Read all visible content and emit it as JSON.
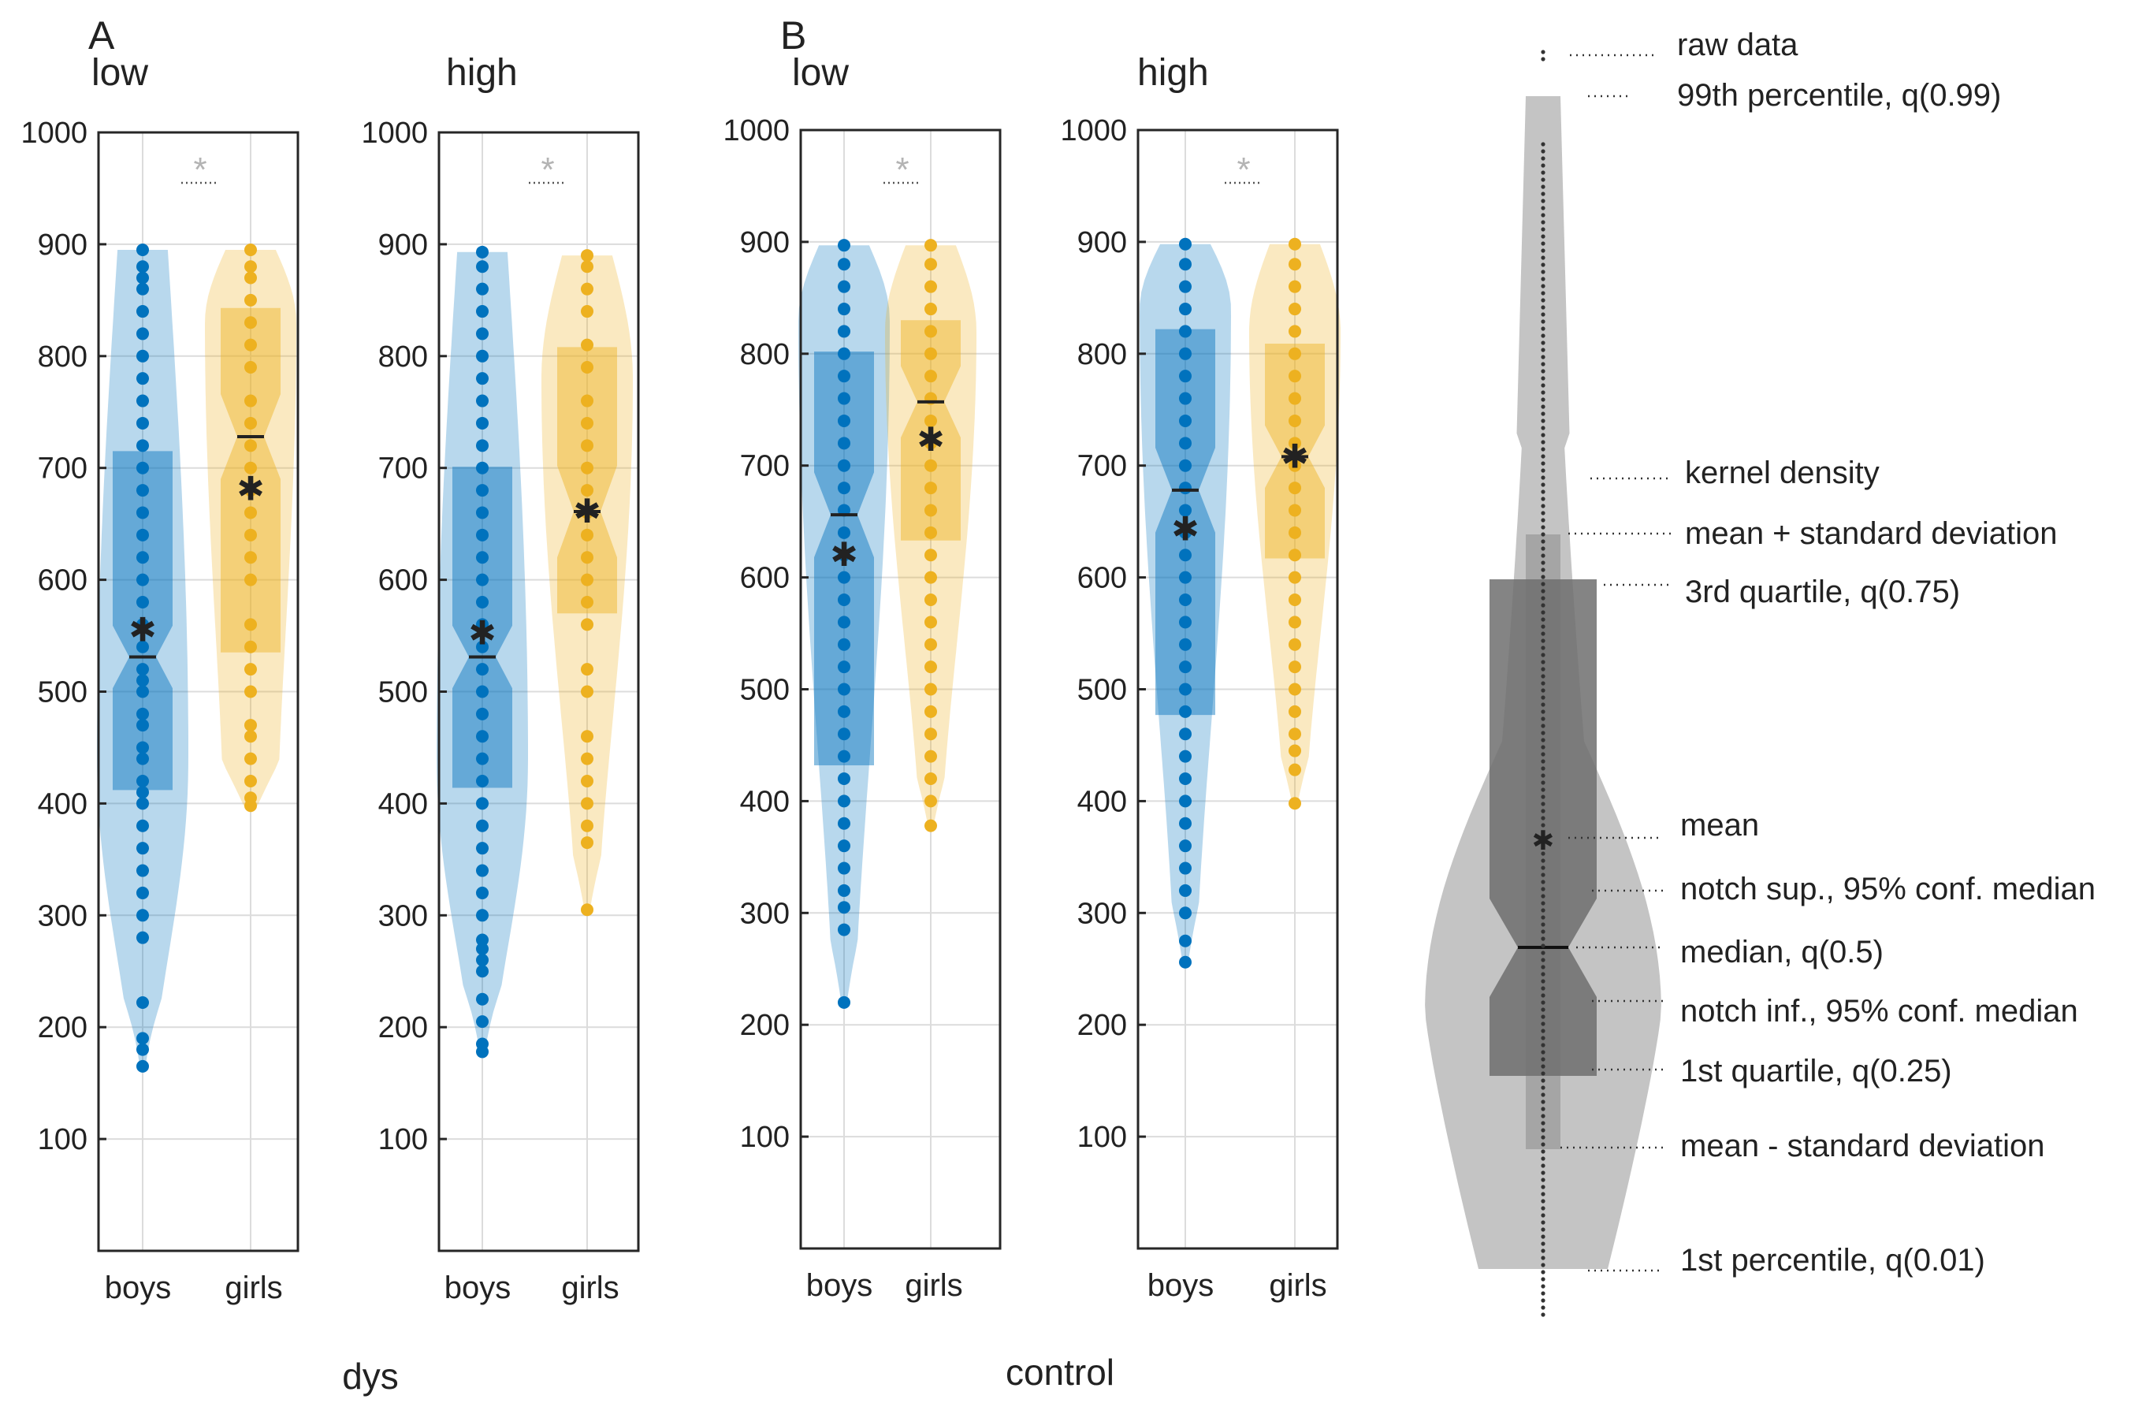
{
  "colors": {
    "boys": "#0072BD",
    "girls": "#EDB120",
    "legend_light": "#c4c4c4",
    "legend_mid": "#a5a5a5",
    "legend_dark": "#6e6e6e",
    "grid": "#dcdcdc",
    "significance": "#b4b4b4"
  },
  "chart_data": {
    "type": "violin",
    "ylim": [
      0,
      1000
    ],
    "yticks": [
      100,
      200,
      300,
      400,
      500,
      600,
      700,
      800,
      900,
      1000
    ],
    "categories": [
      "boys",
      "girls"
    ],
    "groups": [
      {
        "letter": "A",
        "label": "dys"
      },
      {
        "letter": "B",
        "label": "control"
      }
    ],
    "panels": [
      {
        "title": "low",
        "group": "dys",
        "significance": "*",
        "series": [
          {
            "name": "boys",
            "min": 165,
            "max": 895,
            "q1": 412,
            "median": 531,
            "q3": 715,
            "mean": 555,
            "notch_low": 503,
            "notch_high": 559,
            "density_peak": 440,
            "lo_width": 0.25,
            "points": [
              165,
              180,
              190,
              222,
              280,
              300,
              320,
              340,
              360,
              380,
              400,
              410,
              420,
              440,
              450,
              470,
              480,
              500,
              510,
              520,
              540,
              560,
              580,
              600,
              620,
              640,
              660,
              680,
              700,
              720,
              740,
              760,
              780,
              800,
              820,
              840,
              860,
              870,
              880,
              895
            ]
          },
          {
            "name": "girls",
            "min": 398,
            "max": 895,
            "q1": 535,
            "median": 728,
            "q3": 843,
            "mean": 681,
            "notch_low": 690,
            "notch_high": 766,
            "density_peak": 830,
            "lo_width": 0.6,
            "points": [
              398,
              405,
              420,
              440,
              460,
              470,
              500,
              520,
              540,
              560,
              600,
              620,
              640,
              660,
              680,
              700,
              720,
              740,
              760,
              790,
              810,
              830,
              850,
              870,
              880,
              895
            ]
          }
        ]
      },
      {
        "title": "high",
        "group": "dys",
        "significance": "*",
        "series": [
          {
            "name": "boys",
            "min": 178,
            "max": 893,
            "q1": 414,
            "median": 531,
            "q3": 701,
            "mean": 552,
            "notch_low": 503,
            "notch_high": 559,
            "density_peak": 440,
            "lo_width": 0.25,
            "points": [
              178,
              185,
              205,
              225,
              250,
              260,
              270,
              278,
              300,
              320,
              340,
              360,
              380,
              400,
              420,
              440,
              460,
              480,
              500,
              520,
              540,
              560,
              580,
              600,
              620,
              640,
              660,
              680,
              700,
              720,
              740,
              760,
              780,
              800,
              820,
              840,
              860,
              880,
              893
            ]
          },
          {
            "name": "girls",
            "min": 305,
            "max": 890,
            "q1": 570,
            "median": 661,
            "q3": 808,
            "mean": 661,
            "notch_low": 620,
            "notch_high": 702,
            "density_peak": 780,
            "lo_width": 0.25,
            "points": [
              305,
              365,
              380,
              400,
              420,
              440,
              460,
              500,
              520,
              560,
              580,
              600,
              620,
              640,
              660,
              680,
              700,
              720,
              740,
              760,
              790,
              810,
              840,
              860,
              880,
              890
            ]
          }
        ]
      },
      {
        "title": "low",
        "group": "control",
        "significance": "*",
        "series": [
          {
            "name": "boys",
            "min": 220,
            "max": 897,
            "q1": 432,
            "median": 656,
            "q3": 802,
            "mean": 620,
            "notch_low": 618,
            "notch_high": 694,
            "density_peak": 830,
            "lo_width": 0.25,
            "points": [
              220,
              285,
              305,
              320,
              340,
              360,
              380,
              400,
              420,
              440,
              460,
              480,
              500,
              520,
              540,
              560,
              580,
              600,
              620,
              640,
              660,
              680,
              700,
              720,
              740,
              760,
              780,
              800,
              820,
              840,
              860,
              880,
              897
            ]
          },
          {
            "name": "girls",
            "min": 378,
            "max": 897,
            "q1": 633,
            "median": 757,
            "q3": 830,
            "mean": 723,
            "notch_low": 725,
            "notch_high": 789,
            "density_peak": 820,
            "lo_width": 0.25,
            "points": [
              378,
              400,
              420,
              440,
              460,
              480,
              500,
              520,
              540,
              560,
              580,
              600,
              620,
              640,
              660,
              680,
              700,
              720,
              740,
              760,
              780,
              800,
              820,
              840,
              860,
              880,
              897
            ]
          }
        ]
      },
      {
        "title": "high",
        "group": "control",
        "significance": "*",
        "series": [
          {
            "name": "boys",
            "min": 256,
            "max": 898,
            "q1": 477,
            "median": 678,
            "q3": 822,
            "mean": 643,
            "notch_low": 640,
            "notch_high": 716,
            "density_peak": 840,
            "lo_width": 0.25,
            "points": [
              256,
              275,
              300,
              320,
              340,
              360,
              380,
              400,
              420,
              440,
              460,
              480,
              500,
              520,
              540,
              560,
              580,
              600,
              620,
              640,
              660,
              680,
              700,
              720,
              740,
              760,
              780,
              800,
              820,
              840,
              860,
              880,
              898
            ]
          },
          {
            "name": "girls",
            "min": 398,
            "max": 898,
            "q1": 617,
            "median": 708,
            "q3": 809,
            "mean": 708,
            "notch_low": 680,
            "notch_high": 736,
            "density_peak": 820,
            "lo_width": 0.25,
            "points": [
              398,
              428,
              445,
              460,
              480,
              500,
              520,
              540,
              560,
              580,
              600,
              620,
              640,
              660,
              680,
              700,
              720,
              740,
              760,
              780,
              800,
              820,
              840,
              860,
              880,
              898
            ]
          }
        ]
      }
    ],
    "legend": {
      "title_items": [
        "raw data",
        "99th percentile, q(0.99)",
        "kernel density",
        "mean + standard deviation",
        "3rd quartile, q(0.75)",
        "mean",
        "notch sup., 95% conf. median",
        "median, q(0.5)",
        "notch inf., 95% conf. median",
        "1st quartile, q(0.25)",
        "mean - standard deviation",
        "1st percentile, q(0.01)"
      ]
    }
  }
}
